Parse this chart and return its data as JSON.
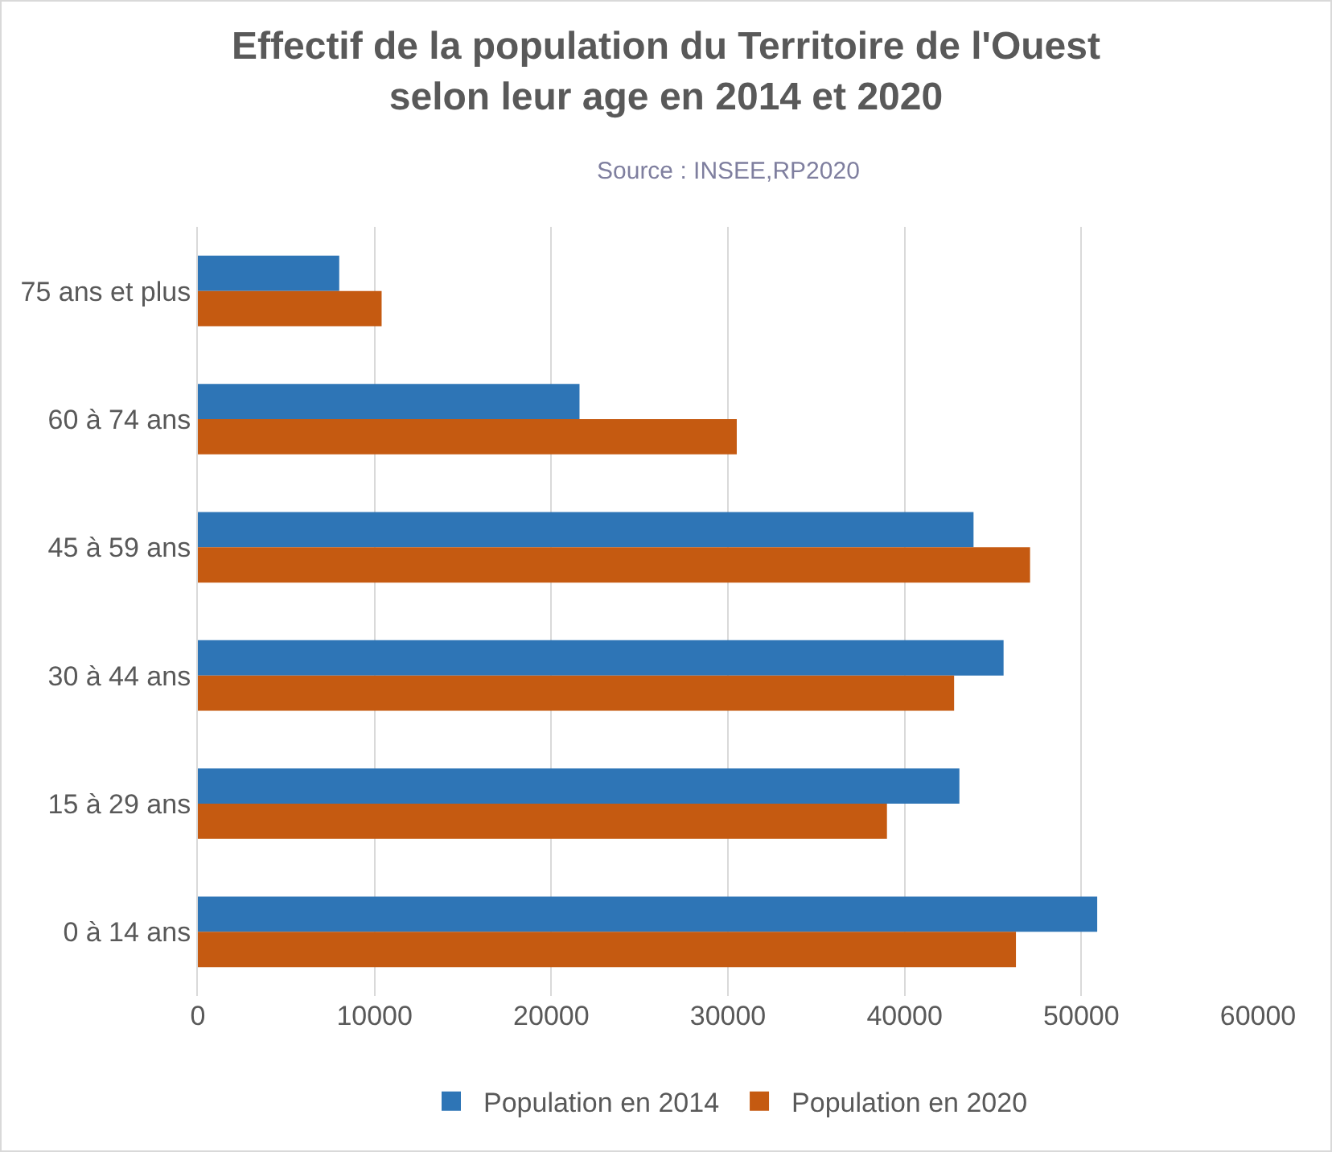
{
  "chart_data": {
    "type": "bar",
    "orientation": "horizontal",
    "title": "Effectif de la population du Territoire de l'Ouest selon leur age en 2014 et 2020",
    "subtitle": "Source : INSEE,RP2020",
    "categories": [
      "75 ans et plus",
      "60 à 74 ans",
      "45 à 59 ans",
      "30 à 44 ans",
      "15 à 29 ans",
      "0 à 14 ans"
    ],
    "series": [
      {
        "name": "Population en 2014",
        "color": "#2e75b6",
        "values": [
          8000,
          21600,
          43900,
          45600,
          43100,
          50900
        ]
      },
      {
        "name": "Population en 2020",
        "color": "#c55a11",
        "values": [
          10400,
          30500,
          47100,
          42800,
          39000,
          46300
        ]
      }
    ],
    "xlim": [
      0,
      60000
    ],
    "xticks": [
      0,
      10000,
      20000,
      30000,
      40000,
      50000,
      60000
    ],
    "grid": "x",
    "legend": "bottom"
  }
}
